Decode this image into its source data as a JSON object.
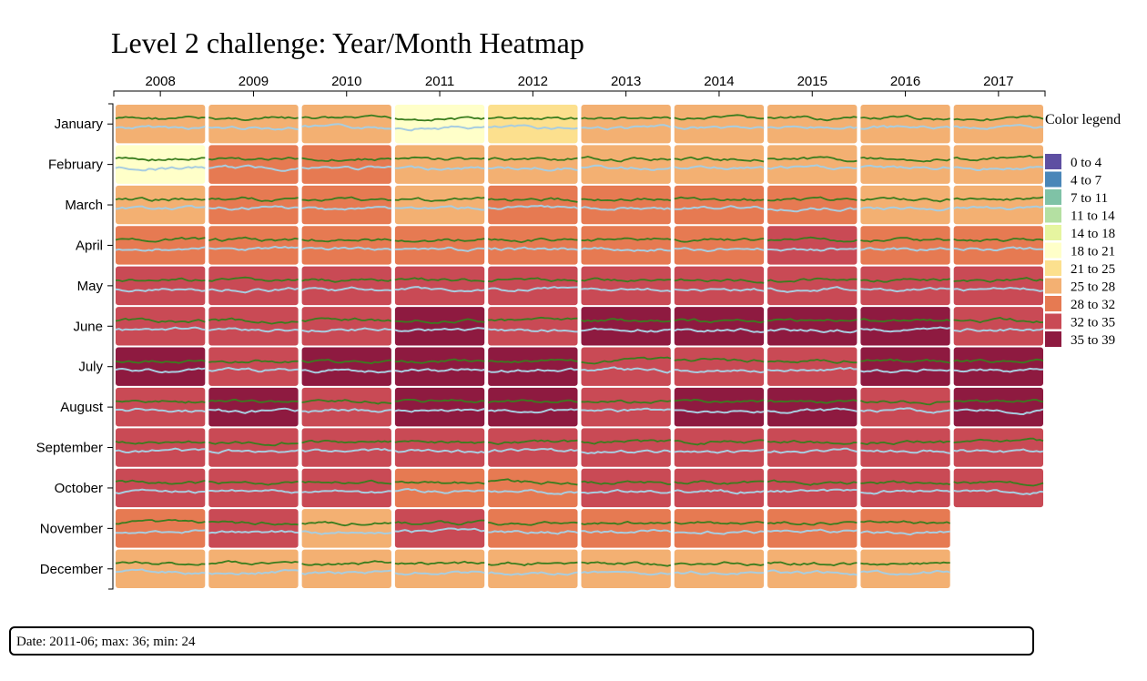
{
  "chart_data": {
    "type": "heatmap",
    "title": "Level 2 challenge: Year/Month Heatmap",
    "years": [
      "2008",
      "2009",
      "2010",
      "2011",
      "2012",
      "2013",
      "2014",
      "2015",
      "2016",
      "2017"
    ],
    "months": [
      "January",
      "February",
      "March",
      "April",
      "May",
      "June",
      "July",
      "August",
      "September",
      "October",
      "November",
      "December"
    ],
    "cell_range_index": [
      [
        7,
        7,
        7,
        5,
        6,
        7,
        7,
        7,
        7,
        7
      ],
      [
        5,
        8,
        8,
        7,
        7,
        7,
        7,
        7,
        7,
        7
      ],
      [
        7,
        8,
        8,
        7,
        8,
        8,
        8,
        8,
        7,
        7
      ],
      [
        8,
        8,
        8,
        8,
        8,
        8,
        8,
        9,
        8,
        8
      ],
      [
        9,
        9,
        9,
        9,
        9,
        9,
        9,
        9,
        9,
        9
      ],
      [
        9,
        9,
        9,
        10,
        9,
        10,
        10,
        10,
        10,
        9
      ],
      [
        10,
        9,
        10,
        10,
        10,
        9,
        9,
        9,
        10,
        10
      ],
      [
        9,
        10,
        9,
        10,
        10,
        9,
        10,
        10,
        9,
        10
      ],
      [
        9,
        9,
        9,
        9,
        9,
        9,
        9,
        9,
        9,
        9
      ],
      [
        9,
        9,
        9,
        8,
        8,
        9,
        9,
        9,
        9,
        9
      ],
      [
        8,
        9,
        7,
        9,
        8,
        8,
        8,
        8,
        8,
        null
      ],
      [
        7,
        7,
        7,
        7,
        7,
        7,
        7,
        7,
        7,
        null
      ]
    ],
    "legend": {
      "title": "Color legend",
      "items": [
        {
          "label": "0 to 4",
          "color": "#5e4fa2"
        },
        {
          "label": "4 to 7",
          "color": "#4a86b8"
        },
        {
          "label": "7 to 11",
          "color": "#7fc2a6"
        },
        {
          "label": "11 to 14",
          "color": "#b4e0a2"
        },
        {
          "label": "14 to 18",
          "color": "#e6f5a0"
        },
        {
          "label": "18 to 21",
          "color": "#ffffc9"
        },
        {
          "label": "21 to 25",
          "color": "#fce08e"
        },
        {
          "label": "25 to 28",
          "color": "#f3b072"
        },
        {
          "label": "28 to 32",
          "color": "#e67a52"
        },
        {
          "label": "32 to 35",
          "color": "#c94a55"
        },
        {
          "label": "35 to 39",
          "color": "#8e1a40"
        }
      ]
    },
    "line_colors": {
      "max": "#3a7d1e",
      "min": "#a8cde0"
    }
  },
  "tooltip": {
    "text": "Date: 2011-06; max: 36; min: 24"
  }
}
